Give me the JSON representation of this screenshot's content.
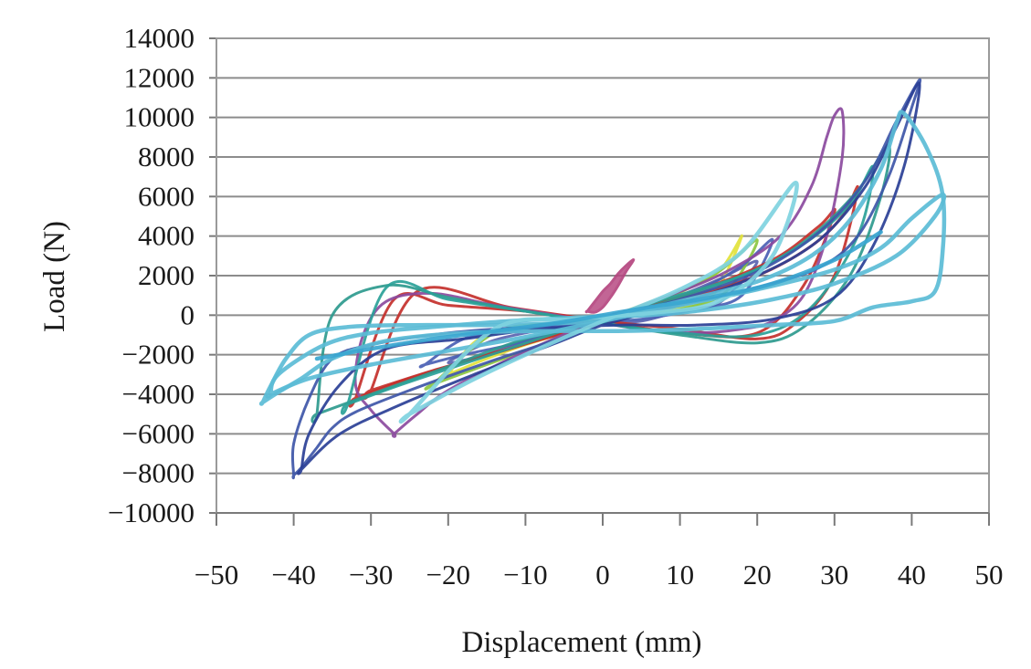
{
  "chart_data": {
    "type": "line",
    "title": "",
    "xlabel": "Displacement (mm)",
    "ylabel": "Load (N)",
    "xlim": [
      -50,
      50
    ],
    "ylim": [
      -10000,
      14000
    ],
    "x_ticks": [
      -50,
      -40,
      -30,
      -20,
      -10,
      0,
      10,
      20,
      30,
      40,
      50
    ],
    "x_tick_labels": [
      "−50",
      "−40",
      "−30",
      "−20",
      "−10",
      "0",
      "10",
      "20",
      "30",
      "40",
      "50"
    ],
    "y_ticks": [
      -10000,
      -8000,
      -6000,
      -4000,
      -2000,
      0,
      2000,
      4000,
      6000,
      8000,
      10000,
      12000,
      14000
    ],
    "y_tick_labels": [
      "−10000",
      "−8000",
      "−6000",
      "−4000",
      "−2000",
      "0",
      "2000",
      "4000",
      "6000",
      "8000",
      "10000",
      "12000",
      "14000"
    ],
    "grid": "horizontal",
    "legend": "none",
    "series": [
      {
        "color": "#b5467f",
        "loop": true,
        "filled": true,
        "x": [
          -2,
          -1,
          0,
          1,
          2,
          3,
          4,
          3,
          2,
          1,
          0,
          -1,
          -2
        ],
        "y": [
          200,
          700,
          1200,
          1600,
          2100,
          2500,
          2800,
          2200,
          1500,
          900,
          400,
          150,
          200
        ]
      },
      {
        "color": "#5b63b0",
        "loop": true,
        "x": [
          -15,
          -10,
          -5,
          0,
          5,
          10,
          15,
          20,
          15,
          10,
          5,
          0,
          -5,
          -10,
          -15,
          -20,
          -15
        ],
        "y": [
          -2000,
          -1300,
          -700,
          -100,
          400,
          1000,
          1800,
          2700,
          600,
          200,
          -300,
          -400,
          -600,
          -900,
          -1400,
          -2400,
          -2000
        ]
      },
      {
        "color": "#e2e23a",
        "loop": true,
        "x": [
          -20,
          -15,
          -10,
          -5,
          0,
          5,
          10,
          15,
          18,
          14,
          8,
          2,
          -4,
          -10,
          -16,
          -20
        ],
        "y": [
          -3000,
          -2200,
          -1500,
          -900,
          -200,
          500,
          1200,
          2200,
          4000,
          900,
          300,
          0,
          -300,
          -700,
          -1200,
          -3000
        ]
      },
      {
        "color": "#8cc63f",
        "loop": true,
        "x": [
          -22,
          -15,
          -8,
          0,
          8,
          15,
          20,
          16,
          10,
          2,
          -6,
          -14,
          -22
        ],
        "y": [
          -3500,
          -2500,
          -1500,
          -300,
          800,
          2200,
          3800,
          1200,
          300,
          -100,
          -400,
          -900,
          -3500
        ]
      },
      {
        "color": "#4a5fb4",
        "loop": true,
        "x": [
          -23,
          -18,
          -12,
          -5,
          0,
          6,
          12,
          18,
          22,
          18,
          12,
          5,
          0,
          -6,
          -12,
          -18,
          -23
        ],
        "y": [
          -2500,
          -2000,
          -1500,
          -800,
          -200,
          500,
          1200,
          2500,
          3800,
          1000,
          300,
          -200,
          -300,
          -500,
          -800,
          -1200,
          -2500
        ]
      },
      {
        "color": "#c4302b",
        "loop": true,
        "x": [
          -32,
          -25,
          -15,
          -5,
          0,
          10,
          20,
          27,
          31,
          33,
          30,
          25,
          20,
          10,
          0,
          -10,
          -20,
          -27,
          -32
        ],
        "y": [
          -4200,
          -3200,
          -2000,
          -900,
          -200,
          800,
          2000,
          3500,
          5000,
          6400,
          2000,
          -400,
          -1200,
          -700,
          -300,
          200,
          500,
          800,
          -4200
        ]
      },
      {
        "color": "#c4302b",
        "loop": true,
        "x": [
          -30,
          -22,
          -12,
          0,
          12,
          22,
          28,
          30,
          26,
          20,
          10,
          0,
          -12,
          -24,
          -30
        ],
        "y": [
          -3800,
          -2800,
          -1700,
          -200,
          1200,
          2800,
          4500,
          5200,
          1500,
          -900,
          -900,
          -300,
          400,
          1200,
          -3800
        ]
      },
      {
        "color": "#8b4a9e",
        "loop": true,
        "x": [
          -27,
          -24,
          -20,
          -12,
          -4,
          0,
          8,
          16,
          23,
          27,
          29,
          30,
          31,
          31,
          29,
          26,
          22,
          18,
          12,
          5,
          0,
          -6,
          -14,
          -22,
          -28,
          -31,
          -32,
          -30,
          -27
        ],
        "y": [
          -6000,
          -5000,
          -3800,
          -2200,
          -800,
          -200,
          900,
          2200,
          4000,
          6500,
          9000,
          10100,
          10300,
          8000,
          4000,
          1000,
          -300,
          -700,
          -900,
          -700,
          -400,
          0,
          500,
          1100,
          700,
          -1000,
          -3500,
          -4800,
          -6000
        ]
      },
      {
        "color": "#2e9a8e",
        "loop": true,
        "x": [
          -37,
          -30,
          -20,
          -10,
          0,
          10,
          20,
          27,
          33,
          37,
          36,
          32,
          26,
          20,
          10,
          0,
          -10,
          -20,
          -28,
          -35,
          -37
        ],
        "y": [
          -5000,
          -4000,
          -2600,
          -1200,
          -300,
          900,
          2300,
          4000,
          6300,
          8600,
          6000,
          2000,
          -600,
          -1400,
          -1000,
          -400,
          200,
          900,
          1500,
          0,
          -5000
        ]
      },
      {
        "color": "#2aa198",
        "loop": true,
        "x": [
          -33,
          -26,
          -16,
          -6,
          0,
          8,
          18,
          26,
          32,
          35,
          33,
          27,
          20,
          10,
          0,
          -10,
          -20,
          -28,
          -33
        ],
        "y": [
          -4500,
          -3500,
          -2200,
          -900,
          -200,
          800,
          2000,
          3600,
          5600,
          7500,
          4000,
          400,
          -1000,
          -900,
          -400,
          200,
          800,
          1400,
          -4500
        ]
      },
      {
        "color": "#3e56a8",
        "loop": true,
        "x": [
          -40,
          -39,
          -37,
          -35,
          -32,
          -25,
          -15,
          -5,
          0,
          10,
          20,
          28,
          34,
          38,
          41,
          40,
          37,
          33,
          28,
          20,
          10,
          0,
          -10,
          -20,
          -30,
          -35,
          -38,
          -40,
          -40
        ],
        "y": [
          -8100,
          -7700,
          -6700,
          -5700,
          -4900,
          -3800,
          -2400,
          -1100,
          -200,
          800,
          2200,
          4200,
          6800,
          9800,
          11900,
          10500,
          7000,
          4000,
          2400,
          1400,
          500,
          -300,
          -600,
          -900,
          -1500,
          -2200,
          -4200,
          -6500,
          -8100
        ]
      },
      {
        "color": "#2a3f96",
        "loop": true,
        "x": [
          -39,
          -34,
          -26,
          -16,
          -6,
          0,
          10,
          20,
          28,
          34,
          38,
          41,
          39,
          35,
          30,
          22,
          12,
          2,
          -8,
          -18,
          -28,
          -34,
          -38,
          -39
        ],
        "y": [
          -7800,
          -6000,
          -4500,
          -2900,
          -1400,
          -500,
          600,
          2000,
          3800,
          6500,
          9500,
          11700,
          7500,
          3500,
          900,
          -200,
          -500,
          -500,
          -700,
          -1200,
          -1700,
          -3500,
          -6000,
          -7800
        ]
      },
      {
        "color": "#5bbcd6",
        "loop": true,
        "x": [
          -44,
          -43,
          -41,
          -38,
          -33,
          -25,
          -15,
          -5,
          0,
          10,
          20,
          27,
          32,
          36,
          38,
          39,
          42,
          44,
          44,
          43,
          40,
          35,
          30,
          22,
          12,
          2,
          -8,
          -18,
          -28,
          -35,
          -39,
          -42,
          -44
        ],
        "y": [
          -4400,
          -3600,
          -2200,
          -1000,
          -600,
          -500,
          -500,
          -400,
          -200,
          700,
          1700,
          3000,
          4800,
          7400,
          9700,
          10200,
          8400,
          6100,
          3200,
          1200,
          700,
          400,
          -300,
          -500,
          -700,
          -800,
          -800,
          -900,
          -1300,
          -2200,
          -3200,
          -3900,
          -4400
        ]
      },
      {
        "color": "#5bbcd6",
        "loop": true,
        "x": [
          -43,
          -38,
          -30,
          -20,
          -10,
          0,
          10,
          20,
          30,
          36,
          40,
          44,
          43,
          38,
          30,
          22,
          14,
          6,
          -2,
          -12,
          -22,
          -30,
          -36,
          -42,
          -43
        ],
        "y": [
          -4000,
          -3200,
          -2500,
          -1800,
          -1100,
          -300,
          500,
          1300,
          2300,
          3400,
          4900,
          6100,
          5000,
          3000,
          1600,
          800,
          300,
          0,
          -100,
          -300,
          -600,
          -900,
          -1500,
          -3000,
          -4000
        ]
      },
      {
        "color": "#7fd3e0",
        "loop": true,
        "x": [
          -25,
          -18,
          -10,
          0,
          10,
          18,
          25,
          22,
          15,
          6,
          -4,
          -14,
          -25
        ],
        "y": [
          -5000,
          -3500,
          -2000,
          -300,
          1300,
          3200,
          6700,
          3000,
          700,
          100,
          -200,
          -700,
          -5000
        ]
      },
      {
        "color": "#3aa6d0",
        "loop": false,
        "x": [
          -37,
          -30,
          -22,
          -14,
          -6,
          0,
          6,
          14,
          22,
          30,
          36
        ],
        "y": [
          -2200,
          -1700,
          -1200,
          -800,
          -400,
          0,
          400,
          900,
          1600,
          2800,
          4200
        ]
      }
    ]
  }
}
